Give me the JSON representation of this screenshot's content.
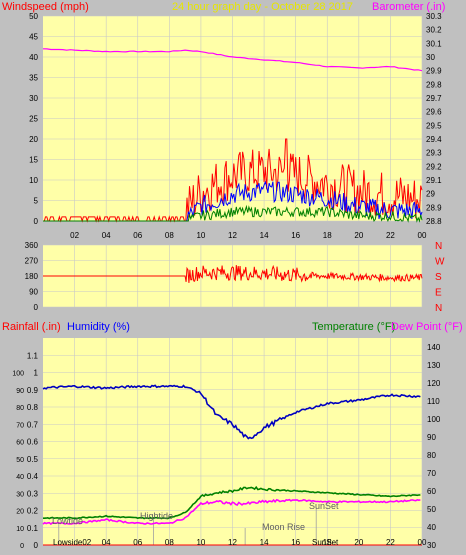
{
  "header": {
    "left_label": "Windspeed (mph)",
    "center_label": "24 hour graph day - October 28 2017",
    "right_label": "Barometer (.in)"
  },
  "colors": {
    "background": "#c0c0c0",
    "plot_bg": "#ffffa8",
    "grid": "#c8c8c8",
    "wind_avg": "#008000",
    "wind_mid": "#0000ff",
    "wind_gust": "#ff0000",
    "barometer": "#ff00ff",
    "direction": "#ff0000",
    "humidity": "#0000c0",
    "temperature": "#008000",
    "dewpoint": "#ff00ff",
    "rainfall": "#ff0000",
    "label_left": "#ff0000",
    "label_humidity": "#0000ff",
    "label_temp": "#008000",
    "label_dew": "#ff00ff",
    "label_center": "#e6e600"
  },
  "bottom_header": {
    "rainfall": "Rainfall (.in)",
    "humidity": "Humidity (%)",
    "temperature": "Temperature (°F)",
    "dewpoint": "Dew Point (°F)"
  },
  "time_ticks": [
    "02",
    "04",
    "06",
    "08",
    "10",
    "12",
    "14",
    "16",
    "18",
    "20",
    "22",
    "00"
  ],
  "tide_labels": {
    "lowtide": "Lowtide",
    "hightide": "Hightide",
    "moonrise": "Moon Rise",
    "sunset": "SunSet",
    "lowside_bottom": "Lowside02",
    "sunset_bottom": "SunSet"
  },
  "chart_data": [
    {
      "type": "line",
      "ylabel": "Windspeed (mph)",
      "y2label": "Barometer (.in)",
      "ylim": [
        0,
        50
      ],
      "y2lim": [
        28.8,
        30.3
      ],
      "y_ticks": [
        "0",
        "5",
        "10",
        "15",
        "20",
        "25",
        "30",
        "35",
        "40",
        "45",
        "50"
      ],
      "y2_ticks": [
        "28.8",
        "28.9",
        "29",
        "29.1",
        "29.2",
        "29.3",
        "29.4",
        "29.5",
        "29.6",
        "29.7",
        "29.8",
        "29.9",
        "30",
        "30.1",
        "30.2",
        "30.3"
      ],
      "x": [
        "00",
        "02",
        "04",
        "06",
        "08",
        "09",
        "10",
        "12",
        "14",
        "16",
        "18",
        "20",
        "22",
        "24"
      ],
      "series": [
        {
          "values": [
            30.06,
            30.05,
            30.04,
            30.04,
            30.04,
            30.05,
            30.04,
            30.0,
            29.98,
            29.96,
            29.93,
            29.92,
            29.93,
            29.9
          ]
        },
        {
          "values": [
            1,
            1,
            1,
            1,
            1,
            1,
            6,
            10,
            11,
            10,
            8,
            6,
            5,
            4
          ]
        },
        {
          "values": [
            0,
            0,
            0,
            0,
            0,
            0,
            3,
            6,
            7,
            6,
            5,
            3,
            2,
            2
          ]
        },
        {
          "values": [
            0,
            0,
            0,
            0,
            0,
            0,
            1,
            2,
            2,
            2,
            2,
            1,
            1,
            0
          ]
        }
      ],
      "gust_peak": 20
    },
    {
      "type": "line",
      "ylim": [
        0,
        360
      ],
      "y_ticks": [
        "360",
        "270",
        "180",
        "90",
        "0"
      ],
      "y2_ticks": [
        "N",
        "W",
        "S",
        "E",
        "N"
      ],
      "x": [
        "00",
        "09",
        "10",
        "12",
        "14",
        "16",
        "18",
        "20",
        "22",
        "24"
      ],
      "series": [
        {
          "values": [
            180,
            180,
            200,
            200,
            195,
            185,
            180,
            175,
            170,
            170
          ]
        }
      ]
    },
    {
      "type": "line",
      "ylim": [
        0,
        1.2
      ],
      "y_ticks": [
        "0",
        "0.1",
        "0.2",
        "0.3",
        "0.4",
        "0.5",
        "0.6",
        "0.7",
        "0.8",
        "0.9",
        "1",
        "1.1"
      ],
      "y_ticks_humidity": [
        "0",
        "10",
        "20",
        "30",
        "40",
        "50",
        "60",
        "70",
        "80",
        "90",
        "100"
      ],
      "y2_ticks": [
        "30",
        "40",
        "50",
        "60",
        "70",
        "80",
        "90",
        "100",
        "110",
        "120",
        "130",
        "140"
      ],
      "x": [
        "00",
        "02",
        "04",
        "06",
        "08",
        "09",
        "10",
        "11",
        "12",
        "13",
        "14",
        "16",
        "18",
        "20",
        "22",
        "24"
      ],
      "series": [
        {
          "values": [
            91,
            92,
            91,
            92,
            92,
            92,
            88,
            75,
            70,
            61,
            68,
            77,
            82,
            84,
            87,
            86
          ]
        },
        {
          "values": [
            45,
            45,
            46,
            45,
            45,
            48,
            57,
            59,
            60,
            62,
            61,
            60,
            59,
            58,
            57,
            58
          ]
        },
        {
          "values": [
            42,
            42,
            44,
            42,
            42,
            45,
            53,
            54,
            53,
            53,
            54,
            55,
            54,
            54,
            54,
            55
          ]
        },
        {
          "values": [
            0,
            0,
            0,
            0,
            0,
            0,
            0,
            0,
            0,
            0,
            0,
            0,
            0,
            0,
            0,
            0
          ]
        }
      ]
    }
  ]
}
